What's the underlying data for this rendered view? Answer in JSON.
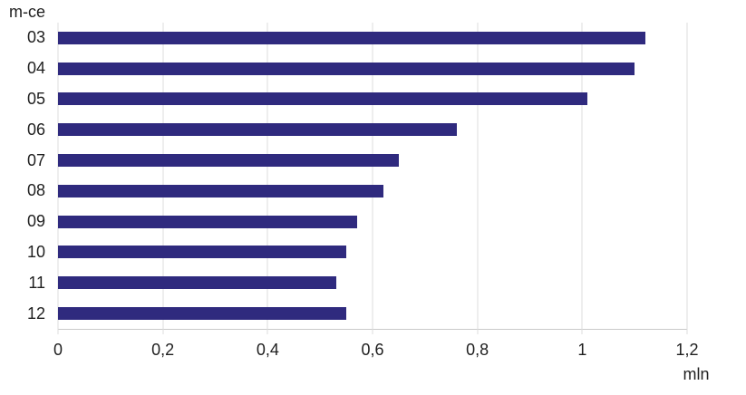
{
  "chart_data": {
    "type": "bar",
    "orientation": "horizontal",
    "title": "",
    "ylabel": "m-ce",
    "xlabel": "mln",
    "categories": [
      "03",
      "04",
      "05",
      "06",
      "07",
      "08",
      "09",
      "10",
      "11",
      "12"
    ],
    "values": [
      1.12,
      1.1,
      1.01,
      0.76,
      0.65,
      0.62,
      0.57,
      0.55,
      0.53,
      0.55
    ],
    "xlim": [
      0,
      1.2
    ],
    "x_ticks": {
      "values": [
        0,
        0.2,
        0.4,
        0.6,
        0.8,
        1.0,
        1.2
      ],
      "labels": [
        "0",
        "0,2",
        "0,4",
        "0,6",
        "0,8",
        "1",
        "1,2"
      ]
    },
    "grid": "vertical",
    "legend": "none",
    "colors": {
      "bar": "#2f2a7e",
      "gridline": "#dcdcdc",
      "axis_line": "#c9c9c9",
      "text": "#1f1f1f",
      "background": "#ffffff"
    }
  }
}
